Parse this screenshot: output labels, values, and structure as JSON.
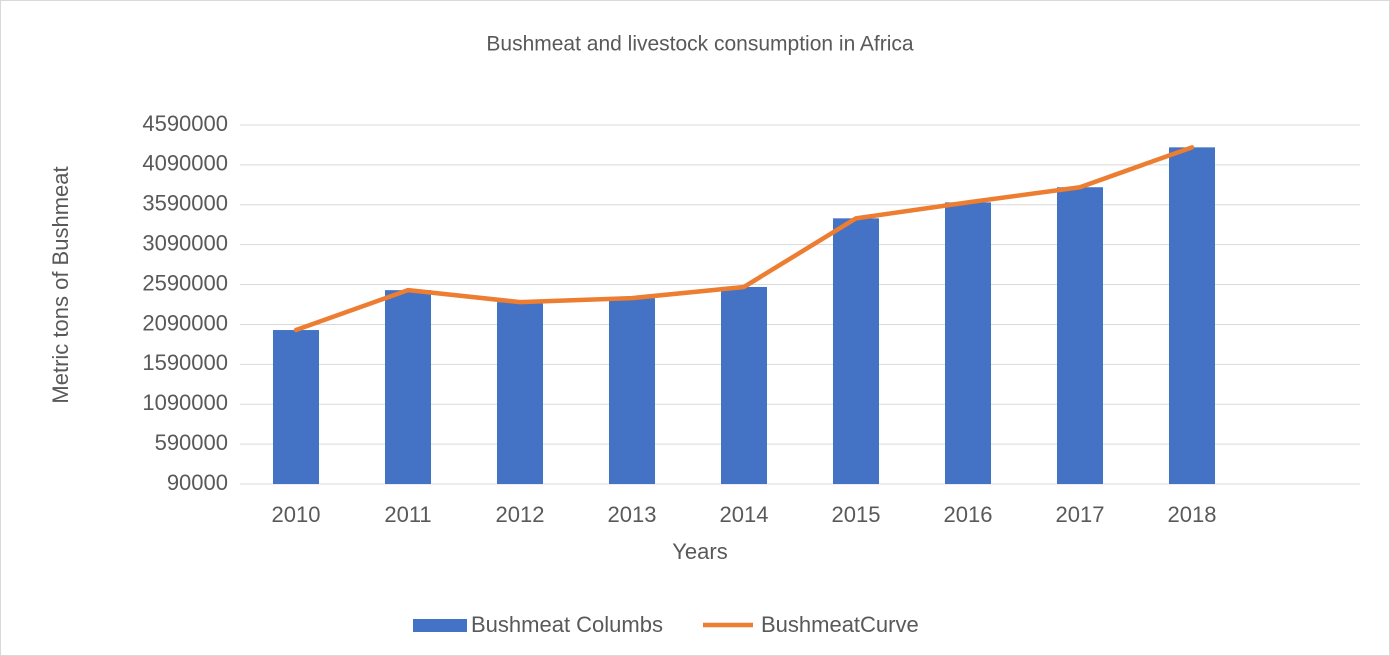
{
  "chart_data": {
    "type": "bar",
    "title": "Bushmeat and livestock consumption in Africa",
    "x_label": "Years",
    "y_label": "Metric tons of Bushmeat",
    "categories": [
      "2010",
      "2011",
      "2012",
      "2013",
      "2014",
      "2015",
      "2016",
      "2017",
      "2018",
      null
    ],
    "series": [
      {
        "name": "Bushmeat Columbs",
        "type": "bar",
        "color": "#4472c4",
        "values": [
          2020000,
          2520000,
          2370000,
          2420000,
          2560000,
          3420000,
          3620000,
          3810000,
          4310000,
          null
        ]
      },
      {
        "name": "BushmeatCurve",
        "type": "line",
        "color": "#ed7d31",
        "values": [
          2020000,
          2520000,
          2370000,
          2420000,
          2560000,
          3420000,
          3620000,
          3810000,
          4310000,
          null
        ]
      }
    ],
    "ylim": [
      90000,
      4590000
    ],
    "yticks": [
      90000,
      590000,
      1090000,
      1590000,
      2090000,
      2590000,
      3090000,
      3590000,
      4090000,
      4590000
    ],
    "grid": true,
    "legend": "bottom"
  }
}
